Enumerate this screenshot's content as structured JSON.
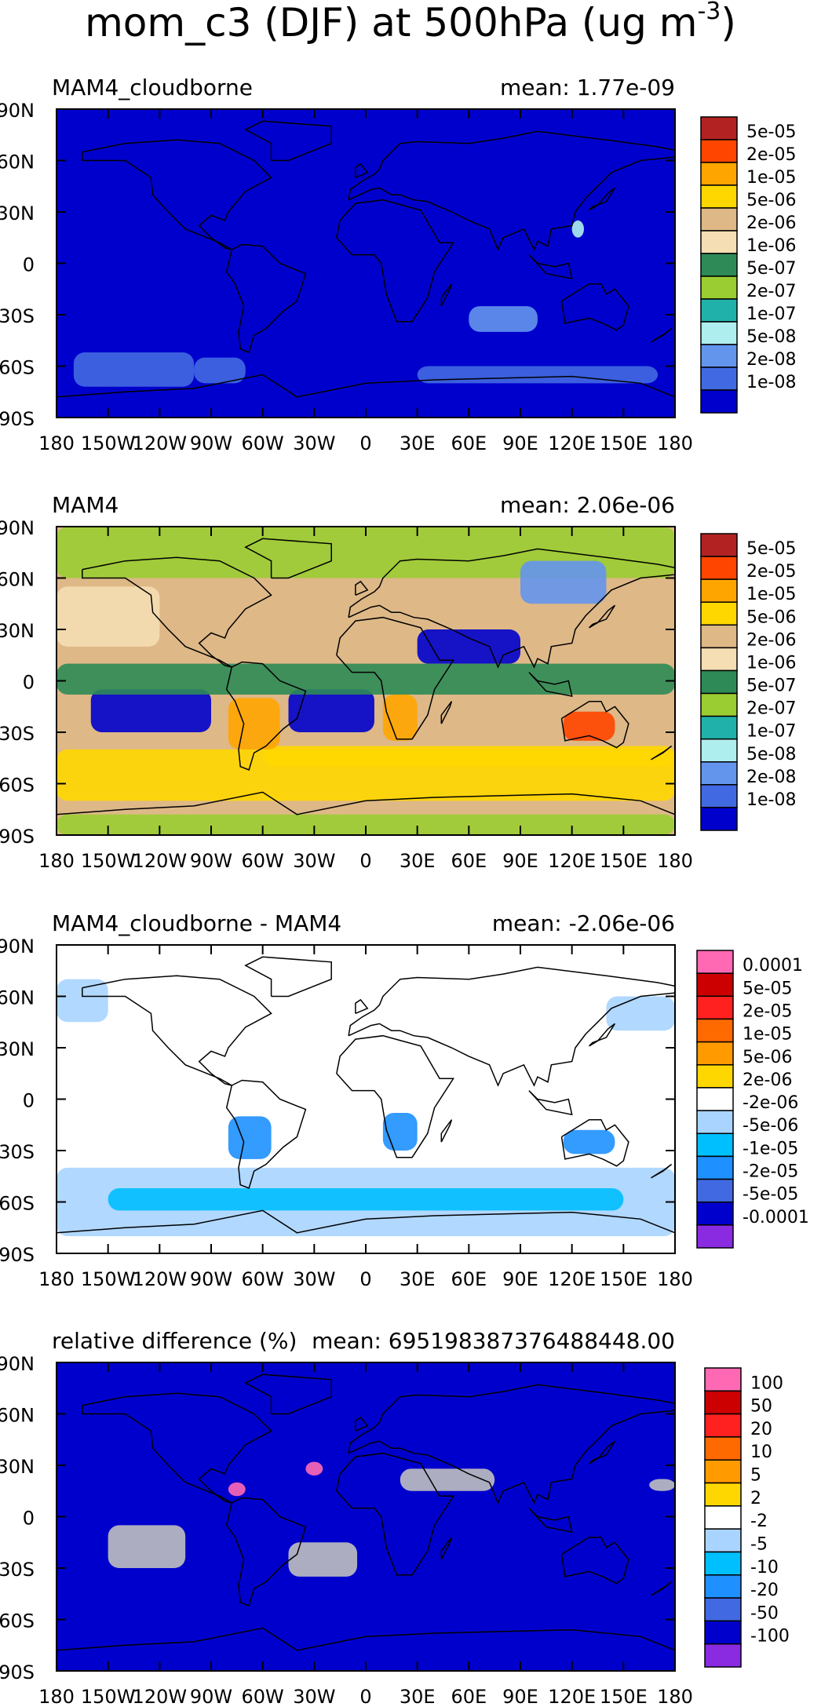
{
  "title": {
    "prefix": "mom_c3 (DJF) at 500hPa (ug m",
    "exponent": "-3",
    "suffix": ")"
  },
  "axes": {
    "lat_labels": [
      "90N",
      "60N",
      "30N",
      "0",
      "30S",
      "60S",
      "90S"
    ],
    "lon_labels": [
      "180",
      "150W",
      "120W",
      "90W",
      "60W",
      "30W",
      "0",
      "30E",
      "60E",
      "90E",
      "120E",
      "150E",
      "180"
    ]
  },
  "panels": [
    {
      "name": "MAM4_cloudborne",
      "mean_text": "mean: 1.77e-09",
      "colorbar": {
        "labels": [
          "5e-05",
          "2e-05",
          "1e-05",
          "5e-06",
          "2e-06",
          "1e-06",
          "5e-07",
          "2e-07",
          "1e-07",
          "5e-08",
          "2e-08",
          "1e-08"
        ],
        "colors": [
          "#b22222",
          "#ff4500",
          "#ffa500",
          "#ffd700",
          "#deb887",
          "#f5deb3",
          "#2e8b57",
          "#9acd32",
          "#20b2aa",
          "#afeeee",
          "#6495ed",
          "#4169e1",
          "#0000cd"
        ]
      },
      "field_color": "#0000cd"
    },
    {
      "name": "MAM4",
      "mean_text": "mean: 2.06e-06",
      "colorbar": {
        "labels": [
          "5e-05",
          "2e-05",
          "1e-05",
          "5e-06",
          "2e-06",
          "1e-06",
          "5e-07",
          "2e-07",
          "1e-07",
          "5e-08",
          "2e-08",
          "1e-08"
        ],
        "colors": [
          "#b22222",
          "#ff4500",
          "#ffa500",
          "#ffd700",
          "#deb887",
          "#f5deb3",
          "#2e8b57",
          "#9acd32",
          "#20b2aa",
          "#afeeee",
          "#6495ed",
          "#4169e1",
          "#0000cd"
        ]
      },
      "field_color": "#deb887"
    },
    {
      "name": "MAM4_cloudborne - MAM4",
      "mean_text": "mean: -2.06e-06",
      "colorbar": {
        "labels": [
          "0.0001",
          "5e-05",
          "2e-05",
          "1e-05",
          "5e-06",
          "2e-06",
          "-2e-06",
          "-5e-06",
          "-1e-05",
          "-2e-05",
          "-5e-05",
          "-0.0001"
        ],
        "colors": [
          "#ff69b4",
          "#cc0000",
          "#ff2020",
          "#ff6a00",
          "#ff9a00",
          "#ffd700",
          "#ffffff",
          "#a8d4ff",
          "#00bfff",
          "#1e90ff",
          "#4169e1",
          "#0000cd",
          "#8a2be2"
        ]
      },
      "field_color": "#ffffff"
    },
    {
      "name": "relative difference (%)",
      "mean_text": "mean: 695198387376488448.00",
      "colorbar": {
        "labels": [
          "100",
          "50",
          "20",
          "10",
          "5",
          "2",
          "-2",
          "-5",
          "-10",
          "-20",
          "-50",
          "-100"
        ],
        "colors": [
          "#ff69b4",
          "#cc0000",
          "#ff2020",
          "#ff6a00",
          "#ff9a00",
          "#ffd700",
          "#ffffff",
          "#a8d4ff",
          "#00bfff",
          "#1e90ff",
          "#4169e1",
          "#0000cd",
          "#8a2be2"
        ]
      },
      "field_color": "#0000cd"
    }
  ]
}
